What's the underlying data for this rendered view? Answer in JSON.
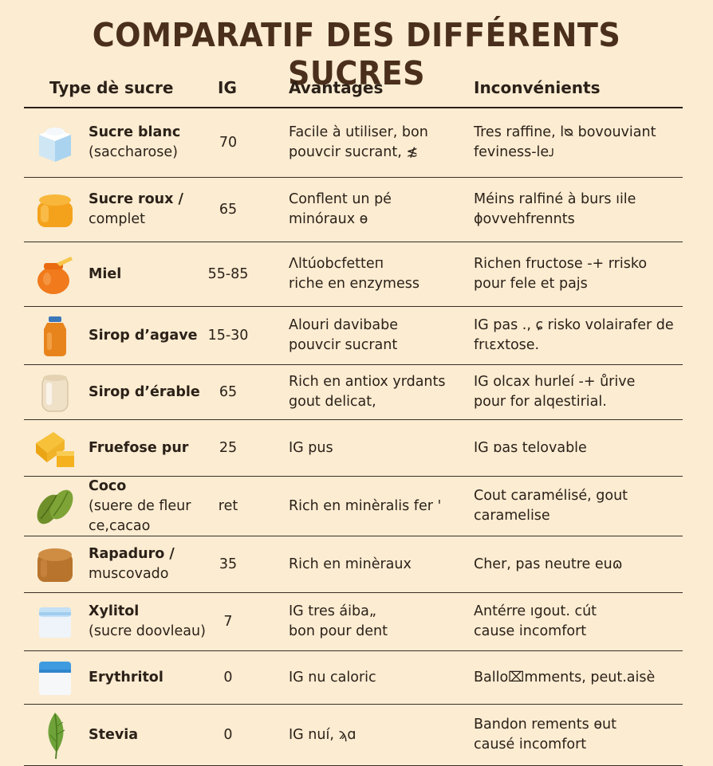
{
  "title": "COMPARATIF DES DIFFÉRENTS SUCRES",
  "headers": {
    "type": "Type dè sucre",
    "ig": "IG",
    "advantages": "Avantages",
    "drawbacks": "Inconvénients"
  },
  "rows": [
    {
      "icon": "sugar-cube-icon",
      "name1": "Sucre blanc",
      "name2": "(saccharose)",
      "ig": "70",
      "adv1": "Facile à utiliser, bon",
      "adv2": "pouvcir sucrant, ≴",
      "inc1": "Tres raffine, lᴓ bovouviant",
      "inc2": "feviness-leᴊ"
    },
    {
      "icon": "brown-sugar-jar-icon",
      "name1": "Sucre roux /",
      "name2": "complet",
      "ig": "65",
      "adv1": "Conflent un pé",
      "adv2": "minóraux ɵ",
      "inc1": "Méins ralfiné à burs ıile",
      "inc2": "ɸovvehfrennts"
    },
    {
      "icon": "honey-pot-icon",
      "name1": "Miel",
      "name2": "",
      "ig": "55-85",
      "adv1": "Λltúobcfetteп",
      "adv2": "riche en enzymess",
      "inc1": "Richen fructose -+ rrisko",
      "inc2": "pour fele et pajs"
    },
    {
      "icon": "agave-bottle-icon",
      "name1": "Sirop d’agave",
      "name2": "",
      "ig": "15-30",
      "adv1": "Alouri davibabe",
      "adv2": "pouvcir sucrant",
      "inc1": "IG pas ., ɕ risko volairafer de",
      "inc2": "frιɛxtose."
    },
    {
      "icon": "maple-syrup-jar-icon",
      "name1": "Sirop d’érable",
      "name2": "",
      "ig": "65",
      "adv1": "Rich en antiox yrdants",
      "adv2": "gout delicat,",
      "inc1": "IG olcax hurlеı́ -+ ůrive",
      "inc2": "pour for alqestirial."
    },
    {
      "icon": "fructose-cubes-icon",
      "name1": "Fruefose pur",
      "name2": "",
      "ig": "25",
      "adv1": "IG pus",
      "adv2": "",
      "inc1": "IG ɒas telovable",
      "inc2": ""
    },
    {
      "icon": "coconut-leaf-icon",
      "name1": "Coco",
      "name2": "(suere de fleur ce,cacao",
      "ig": "ret",
      "adv1": "Rich en minèralis    fer '",
      "adv2": "",
      "inc1": "Cout caramélisé, gout",
      "inc2": "caramelise"
    },
    {
      "icon": "rapadura-block-icon",
      "name1": "Rapaduro /",
      "name2": "muscovado",
      "ig": "35",
      "adv1": "Rich en minèraux",
      "adv2": "",
      "inc1": "Cher, pas neutre euɷ",
      "inc2": ""
    },
    {
      "icon": "xylitol-container-icon",
      "name1": "Xylitol",
      "name2": "(sucre doovleau)",
      "ig": "7",
      "adv1": "IG tres áiba„",
      "adv2": "bon pour dent",
      "inc1": "Antérre ıgout. cút",
      "inc2": "cause incomfort"
    },
    {
      "icon": "erythritol-container-icon",
      "name1": "Erythritol",
      "name2": "",
      "ig": "0",
      "adv1": "IG nu caloric",
      "adv2": "",
      "inc1": "Ballo⌧mments, peut.aisè",
      "inc2": ""
    },
    {
      "icon": "stevia-leaf-icon",
      "name1": "Stevia",
      "name2": "",
      "ig": "0",
      "adv1": "IG nuí, ϡɑ",
      "adv2": "",
      "inc1": "Bandon rements ɵut",
      "inc2": "causé incomfort"
    }
  ]
}
